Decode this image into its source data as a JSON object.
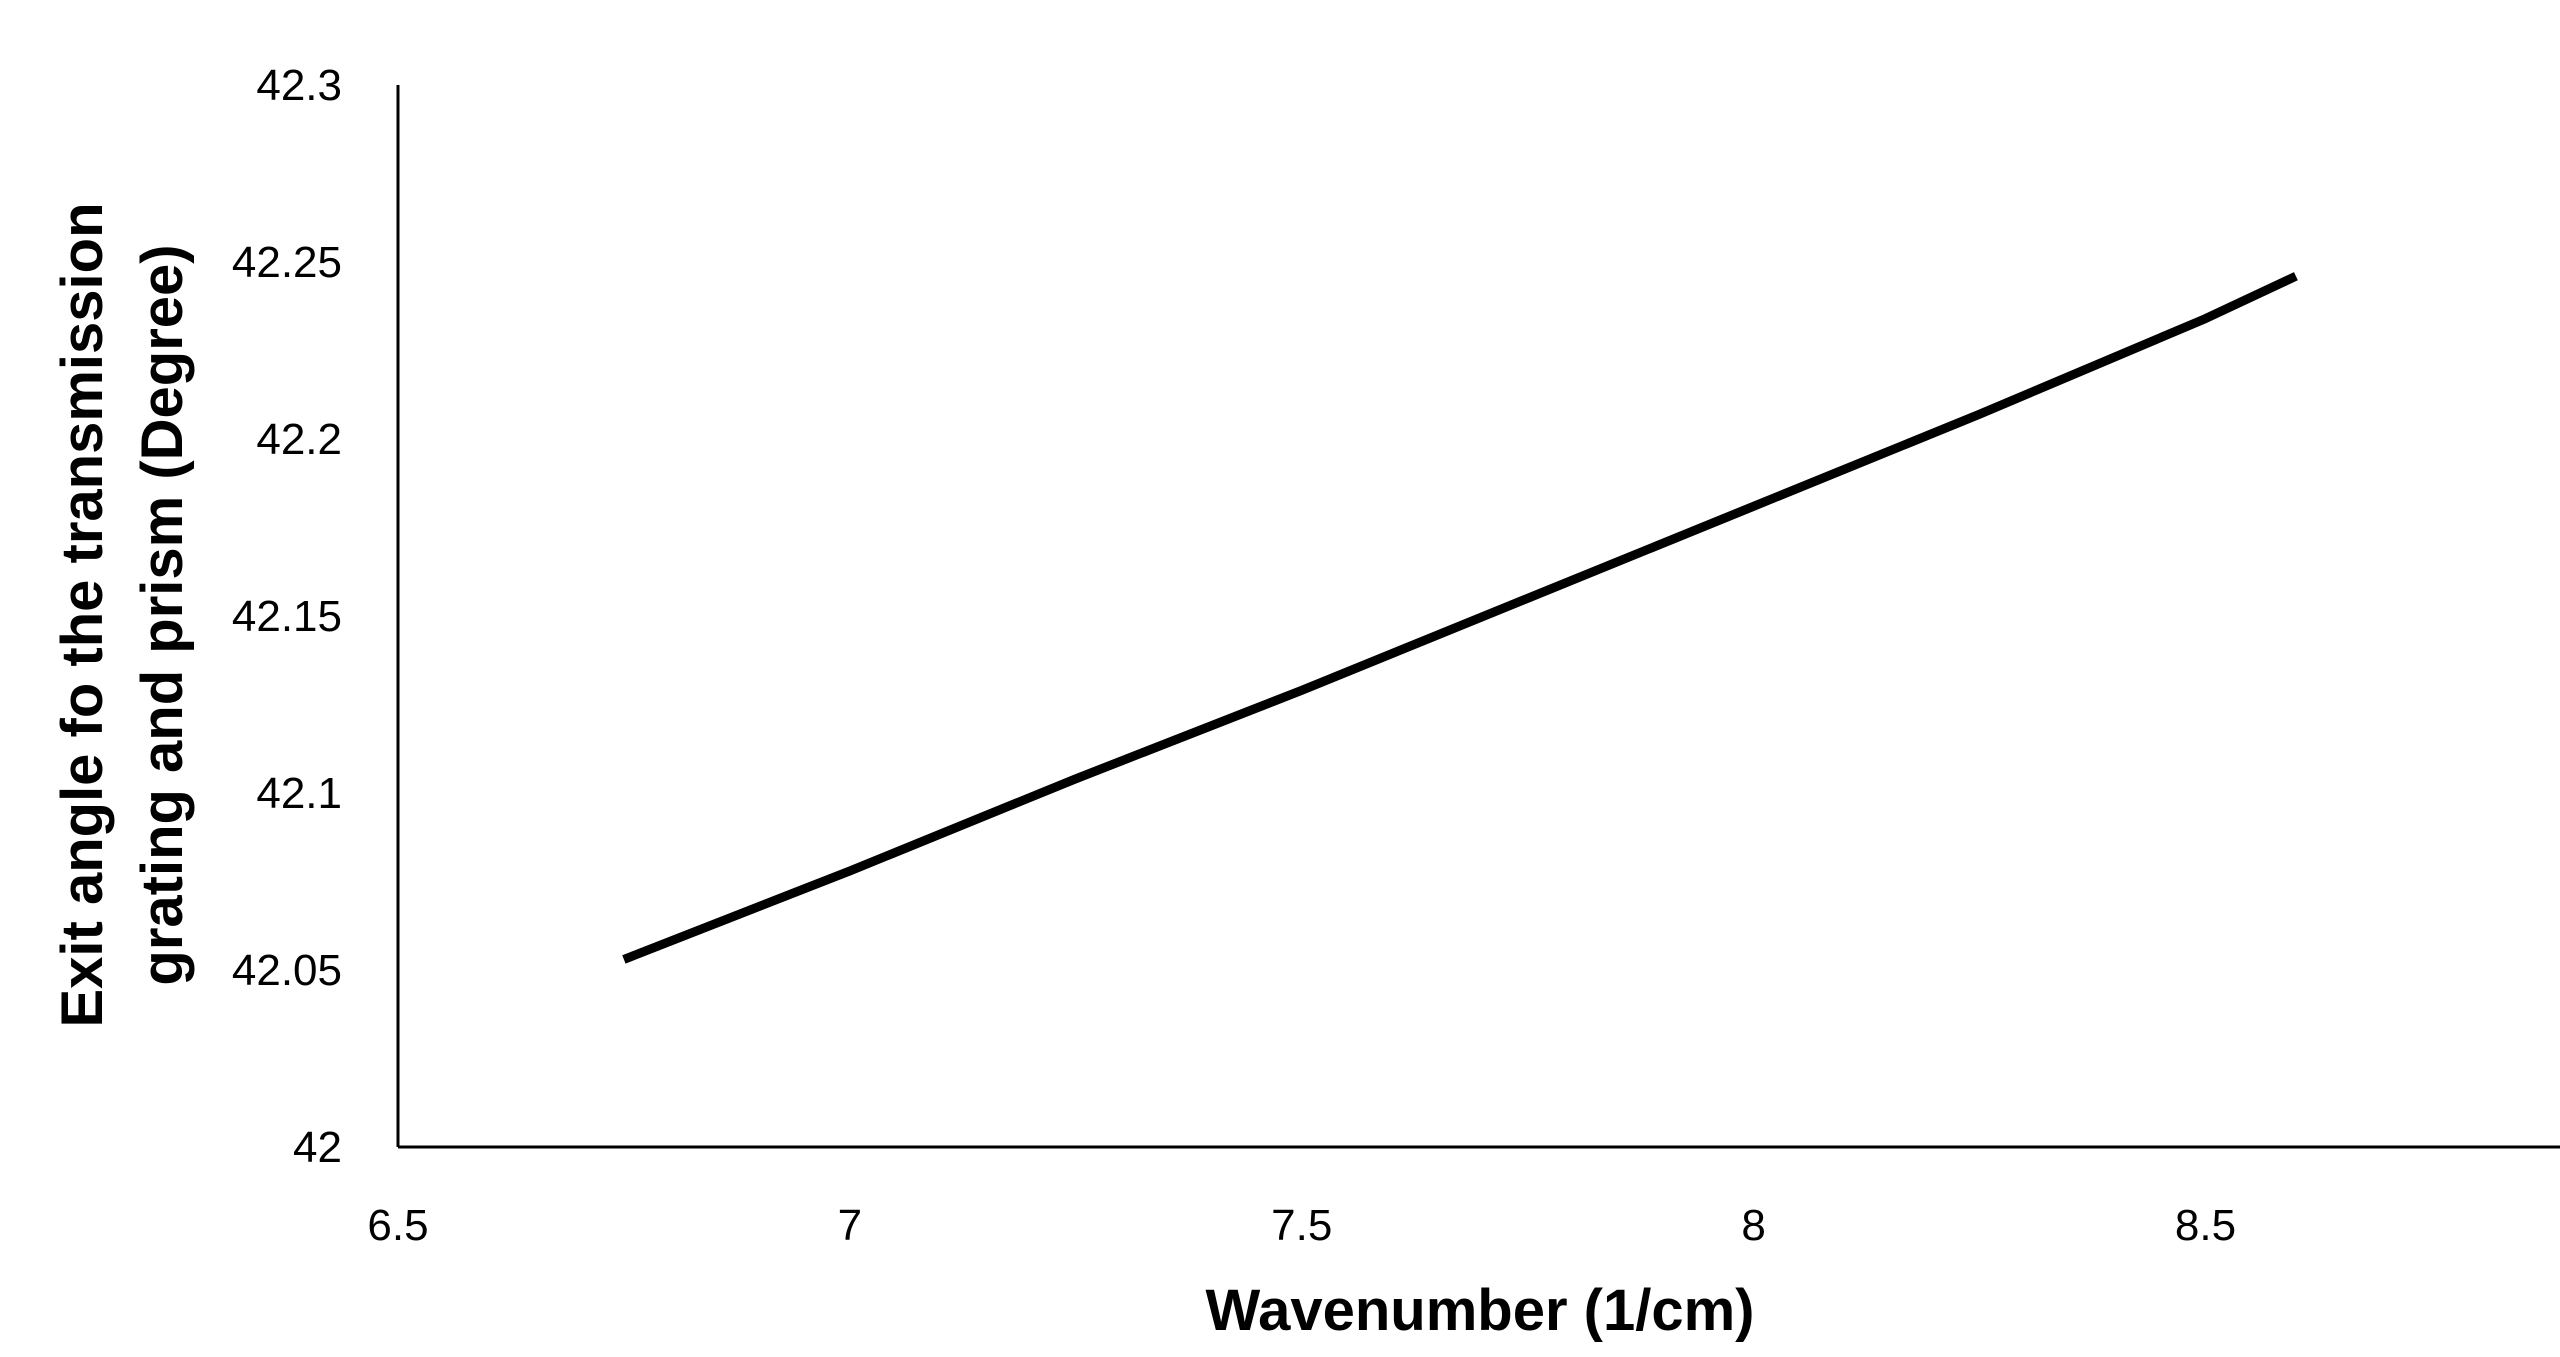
{
  "chart_data": {
    "type": "line",
    "title": "",
    "xlabel": "Wavenumber (1/cm)",
    "ylabel_lines": [
      "Exit angle fo the transmission",
      "grating and prism (Degree)"
    ],
    "xlim": [
      6.5,
      8.9
    ],
    "ylim": [
      42,
      42.3
    ],
    "xticks": [
      "6.5",
      "7",
      "7.5",
      "8",
      "8.5"
    ],
    "yticks": [
      "42",
      "42.05",
      "42.1",
      "42.15",
      "42.2",
      "42.25",
      "42.3"
    ],
    "grid": false,
    "legend": "none",
    "line_color": "#000000",
    "series": [
      {
        "x": [
          6.75,
          7.0,
          7.25,
          7.5,
          7.75,
          8.0,
          8.25,
          8.5,
          8.6
        ],
        "y": [
          42.053,
          42.078,
          42.104,
          42.129,
          42.155,
          42.181,
          42.207,
          42.234,
          42.246
        ]
      }
    ]
  }
}
